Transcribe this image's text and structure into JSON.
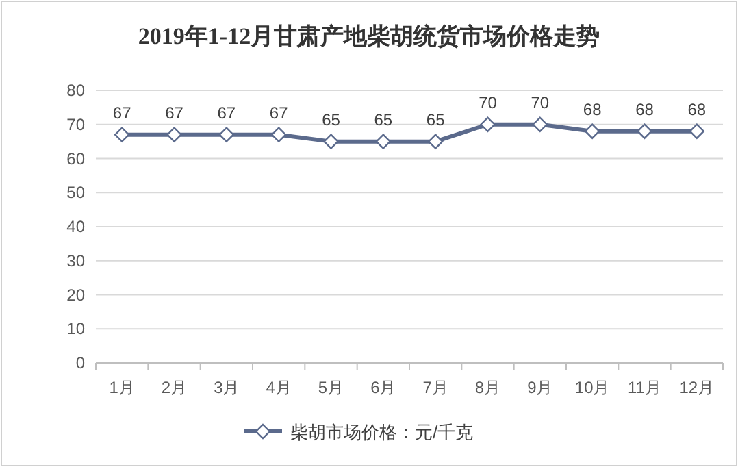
{
  "chart_data": {
    "type": "line",
    "title": "2019年1-12月甘肃产地柴胡统货市场价格走势",
    "categories": [
      "1月",
      "2月",
      "3月",
      "4月",
      "5月",
      "6月",
      "7月",
      "8月",
      "9月",
      "10月",
      "11月",
      "12月"
    ],
    "series": [
      {
        "name": "柴胡市场价格：元/千克",
        "color": "#5b6a8c",
        "values": [
          67,
          67,
          67,
          67,
          65,
          65,
          65,
          70,
          70,
          68,
          68,
          68
        ]
      }
    ],
    "ylim": [
      0,
      80
    ],
    "yticks": [
      0,
      10,
      20,
      30,
      40,
      50,
      60,
      70,
      80
    ],
    "grid": "y",
    "legend": "bottom",
    "marker": "diamond",
    "line_style": "solid",
    "data_labels": true
  }
}
